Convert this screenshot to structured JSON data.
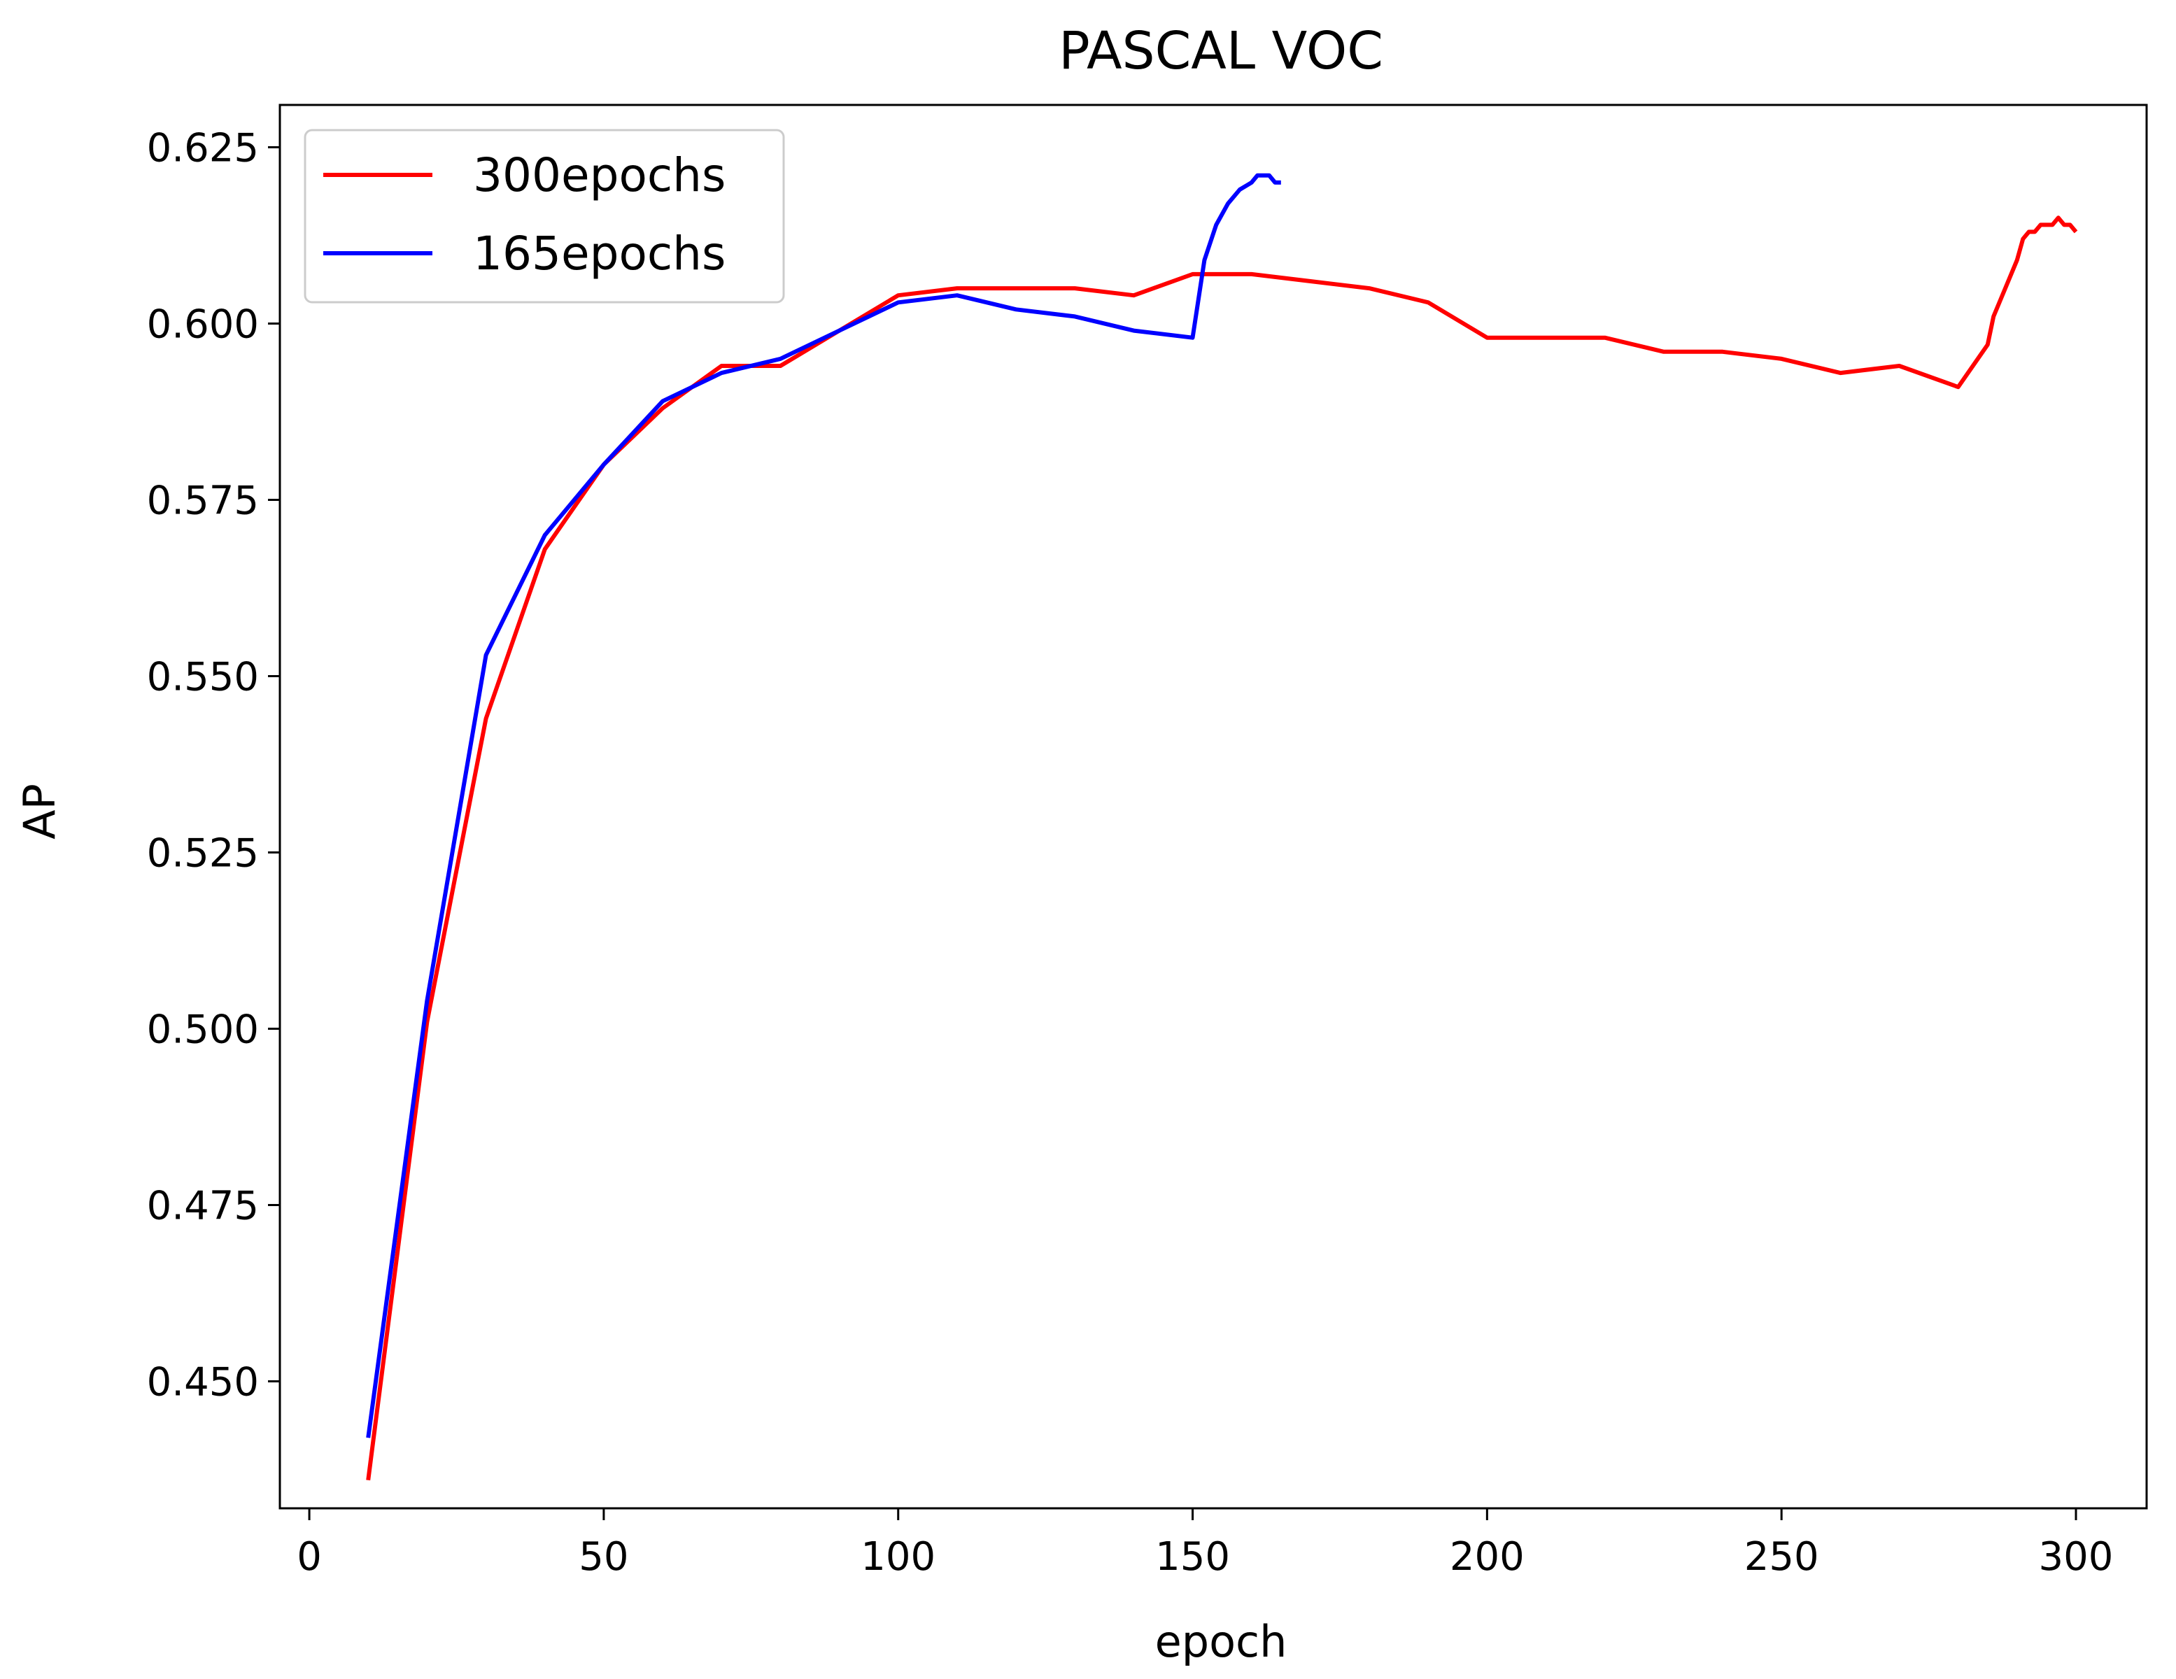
{
  "chart_data": {
    "type": "line",
    "title": "PASCAL VOC",
    "xlabel": "epoch",
    "ylabel": "AP",
    "xlim": [
      -5,
      312
    ],
    "ylim": [
      0.432,
      0.631
    ],
    "xticks": [
      0,
      50,
      100,
      150,
      200,
      250,
      300
    ],
    "xtick_labels": [
      "0",
      "50",
      "100",
      "150",
      "200",
      "250",
      "300"
    ],
    "yticks": [
      0.45,
      0.475,
      0.5,
      0.525,
      0.55,
      0.575,
      0.6,
      0.625
    ],
    "ytick_labels": [
      "0.450",
      "0.475",
      "0.500",
      "0.525",
      "0.550",
      "0.575",
      "0.600",
      "0.625"
    ],
    "grid": false,
    "legend_position": "upper-left",
    "series": [
      {
        "name": "300epochs",
        "color": "#ff0000",
        "x": [
          10,
          20,
          30,
          40,
          50,
          60,
          70,
          80,
          90,
          100,
          110,
          120,
          130,
          140,
          150,
          160,
          170,
          180,
          190,
          200,
          210,
          220,
          230,
          240,
          250,
          260,
          270,
          280,
          285,
          286,
          288,
          290,
          291,
          292,
          293,
          294,
          295,
          296,
          297,
          298,
          299,
          300
        ],
        "y": [
          0.436,
          0.501,
          0.544,
          0.568,
          0.58,
          0.588,
          0.594,
          0.594,
          0.599,
          0.604,
          0.605,
          0.605,
          0.605,
          0.604,
          0.607,
          0.607,
          0.606,
          0.605,
          0.603,
          0.598,
          0.598,
          0.598,
          0.596,
          0.596,
          0.595,
          0.593,
          0.594,
          0.591,
          0.597,
          0.601,
          0.605,
          0.609,
          0.612,
          0.613,
          0.613,
          0.614,
          0.614,
          0.614,
          0.615,
          0.614,
          0.614,
          0.613
        ]
      },
      {
        "name": "165epochs",
        "color": "#0000ff",
        "x": [
          10,
          20,
          30,
          40,
          50,
          60,
          70,
          80,
          90,
          100,
          110,
          120,
          130,
          140,
          150,
          152,
          154,
          156,
          158,
          160,
          161,
          162,
          163,
          164,
          165
        ],
        "y": [
          0.442,
          0.504,
          0.553,
          0.57,
          0.58,
          0.589,
          0.593,
          0.595,
          0.599,
          0.603,
          0.604,
          0.602,
          0.601,
          0.599,
          0.598,
          0.609,
          0.614,
          0.617,
          0.619,
          0.62,
          0.621,
          0.621,
          0.621,
          0.62,
          0.62
        ]
      }
    ]
  }
}
